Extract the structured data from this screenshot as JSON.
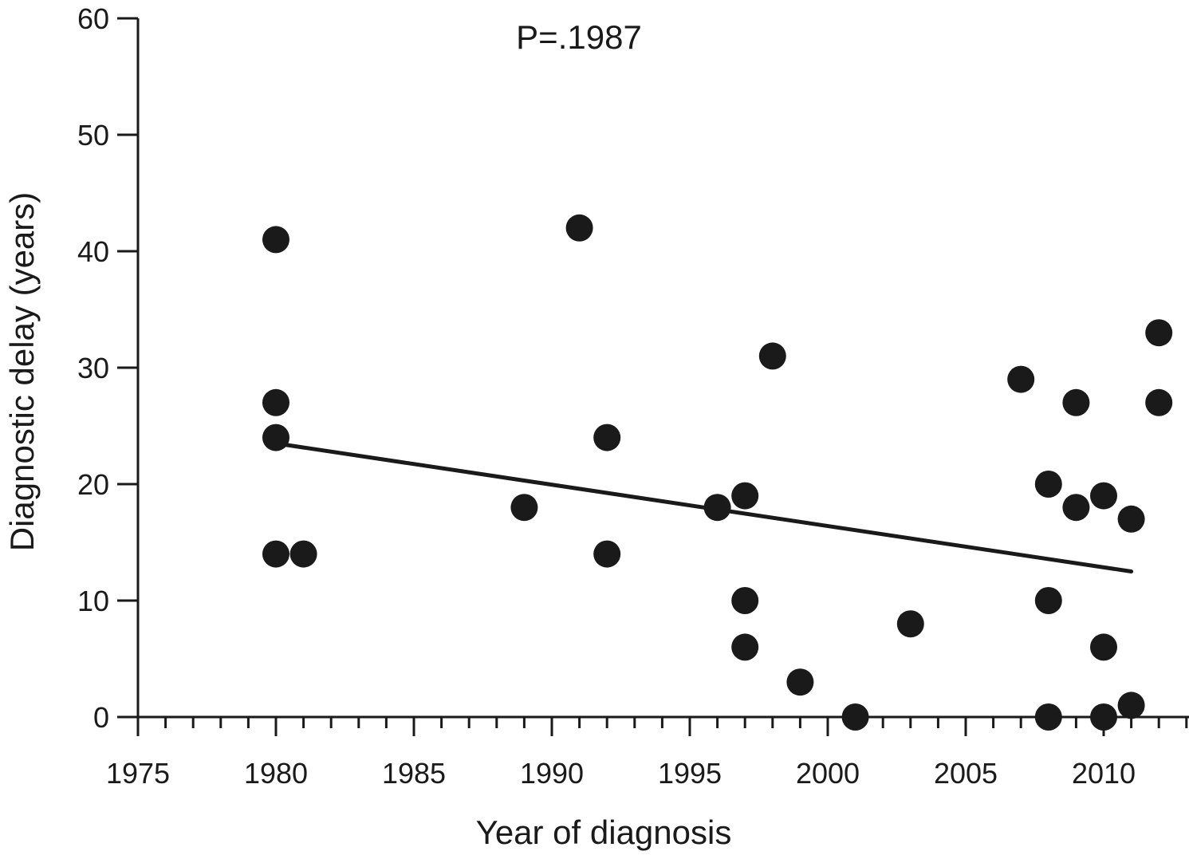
{
  "chart_data": {
    "type": "scatter",
    "xlabel": "Year of diagnosis",
    "ylabel": "Diagnostic delay (years)",
    "annotation": "P=.1987",
    "xlim": [
      1975,
      2013
    ],
    "ylim": [
      0,
      60
    ],
    "x_ticks": [
      1975,
      1980,
      1985,
      1990,
      1995,
      2000,
      2005,
      2010
    ],
    "y_ticks": [
      0,
      10,
      20,
      30,
      40,
      50,
      60
    ],
    "grid": false,
    "colors": {
      "marker": "#1a1a1a",
      "line": "#1a1a1a"
    },
    "points": [
      {
        "x": 1980,
        "y": 41
      },
      {
        "x": 1980,
        "y": 27
      },
      {
        "x": 1980,
        "y": 24
      },
      {
        "x": 1980,
        "y": 14
      },
      {
        "x": 1981,
        "y": 14
      },
      {
        "x": 1989,
        "y": 18
      },
      {
        "x": 1991,
        "y": 42
      },
      {
        "x": 1992,
        "y": 24
      },
      {
        "x": 1992,
        "y": 14
      },
      {
        "x": 1996,
        "y": 18
      },
      {
        "x": 1997,
        "y": 19
      },
      {
        "x": 1997,
        "y": 10
      },
      {
        "x": 1997,
        "y": 6
      },
      {
        "x": 1998,
        "y": 31
      },
      {
        "x": 1999,
        "y": 3
      },
      {
        "x": 2001,
        "y": 0
      },
      {
        "x": 2003,
        "y": 8
      },
      {
        "x": 2007,
        "y": 29
      },
      {
        "x": 2008,
        "y": 20
      },
      {
        "x": 2008,
        "y": 10
      },
      {
        "x": 2008,
        "y": 0
      },
      {
        "x": 2009,
        "y": 27
      },
      {
        "x": 2009,
        "y": 18
      },
      {
        "x": 2010,
        "y": 19
      },
      {
        "x": 2010,
        "y": 6
      },
      {
        "x": 2010,
        "y": 0
      },
      {
        "x": 2011,
        "y": 17
      },
      {
        "x": 2011,
        "y": 1
      },
      {
        "x": 2012,
        "y": 33
      },
      {
        "x": 2012,
        "y": 27
      }
    ],
    "trend_line": {
      "x": [
        1980,
        2011
      ],
      "y": [
        23.5,
        12.5
      ]
    }
  }
}
